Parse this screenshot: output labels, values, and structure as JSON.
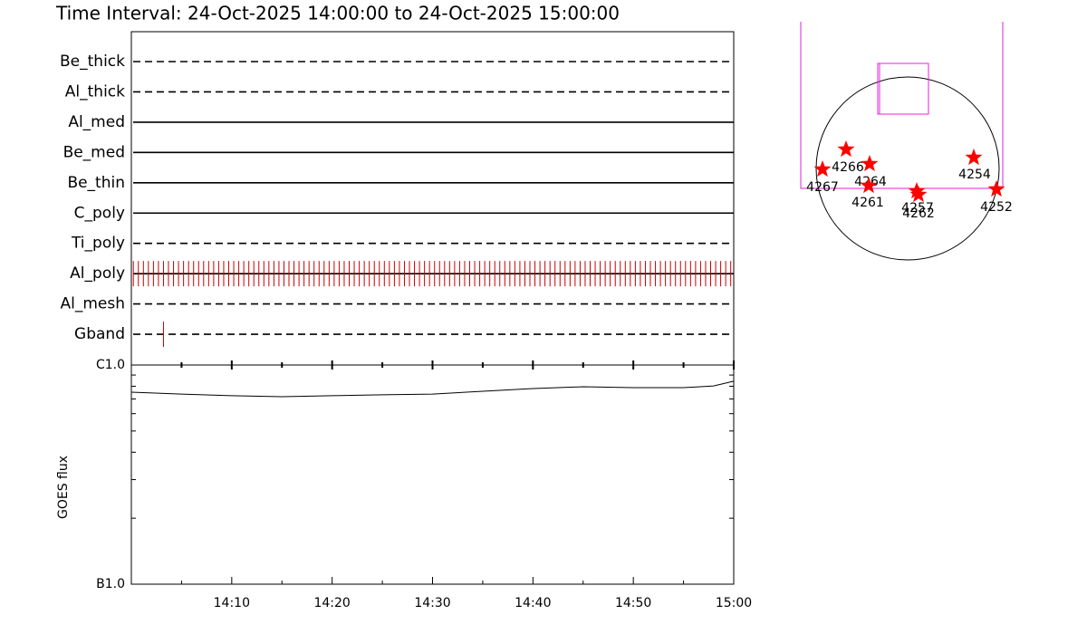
{
  "chart_data": [
    {
      "type": "timeline",
      "title": "Time Interval: 24-Oct-2025 14:00:00 to 24-Oct-2025 15:00:00",
      "categories": [
        "Be_thick",
        "Al_thick",
        "Al_med",
        "Be_med",
        "Be_thin",
        "C_poly",
        "Ti_poly",
        "Al_poly",
        "Al_mesh",
        "Gband"
      ],
      "line_styles": [
        "dashed",
        "dashed",
        "solid",
        "solid",
        "solid",
        "solid",
        "dashed",
        "solid",
        "dashed",
        "dashed"
      ],
      "events": [
        [],
        [],
        [],
        [],
        [],
        [],
        [],
        [
          0.2,
          0.7,
          1.2,
          1.7,
          2.2,
          2.7,
          3.2,
          3.7,
          4.2,
          4.7,
          5.2,
          5.7,
          6.2,
          6.7,
          7.2,
          7.7,
          8.2,
          8.7,
          9.2,
          9.7,
          10.2,
          10.7,
          11.2,
          11.7,
          12.2,
          12.7,
          13.2,
          13.7,
          14.2,
          14.7,
          15.2,
          15.7,
          16.2,
          16.7,
          17.2,
          17.7,
          18.2,
          18.7,
          19.2,
          19.7,
          20.2,
          20.7,
          21.2,
          21.7,
          22.2,
          22.7,
          23.2,
          23.7,
          24.2,
          24.7,
          25.2,
          25.7,
          26.2,
          26.7,
          27.2,
          27.7,
          28.2,
          28.7,
          29.2,
          29.7,
          30.2,
          30.7,
          31.2,
          31.7,
          32.2,
          32.7,
          33.2,
          33.7,
          34.2,
          34.7,
          35.2,
          35.7,
          36.2,
          36.7,
          37.2,
          37.7,
          38.2,
          38.7,
          39.2,
          39.7,
          40.2,
          40.7,
          41.2,
          41.7,
          42.2,
          42.7,
          43.2,
          43.7,
          44.2,
          44.7,
          45.2,
          45.7,
          46.2,
          46.7,
          47.2,
          47.7,
          48.2,
          48.7,
          49.2,
          49.7,
          50.2,
          50.7,
          51.2,
          51.7,
          52.2,
          52.7,
          53.2,
          53.7,
          54.2,
          54.7,
          55.2,
          55.7,
          56.2,
          56.7,
          57.2,
          57.7,
          58.2,
          58.7,
          59.2,
          59.7
        ],
        [],
        [
          3.2
        ]
      ],
      "color": "#cc0000",
      "xlim": [
        0,
        60
      ]
    },
    {
      "type": "line",
      "ylabel": "GOES flux",
      "x": [
        0,
        5,
        10,
        15,
        20,
        25,
        30,
        35,
        40,
        45,
        50,
        55,
        58,
        60
      ],
      "values": [
        7.52e-07,
        7.37e-07,
        7.24e-07,
        7.17e-07,
        7.24e-07,
        7.31e-07,
        7.37e-07,
        7.59e-07,
        7.81e-07,
        7.96e-07,
        7.88e-07,
        7.88e-07,
        8.03e-07,
        8.43e-07
      ],
      "color": "#000000",
      "xlim": [
        0,
        60
      ],
      "xticks": [
        {
          "value": 10,
          "label": "14:10"
        },
        {
          "value": 20,
          "label": "14:20"
        },
        {
          "value": 30,
          "label": "14:30"
        },
        {
          "value": 40,
          "label": "14:40"
        },
        {
          "value": 50,
          "label": "14:50"
        },
        {
          "value": 60,
          "label": "15:00"
        }
      ],
      "xminorticks": [
        5,
        15,
        25,
        35,
        45,
        55
      ],
      "ylim": [
        1e-07,
        1e-06
      ],
      "log_y": true,
      "yticks": [
        {
          "value": 1e-07,
          "label": "B1.0"
        },
        {
          "value": 1e-06,
          "label": "C1.0"
        }
      ],
      "yminorticks": [
        2e-07,
        3e-07,
        4e-07,
        5e-07,
        6e-07,
        7e-07,
        8e-07,
        9e-07
      ]
    },
    {
      "type": "map",
      "labels": [
        "4267",
        "4266",
        "4264",
        "4261",
        "4257",
        "4262",
        "4254",
        "4252"
      ],
      "color": "#ff0000"
    }
  ]
}
